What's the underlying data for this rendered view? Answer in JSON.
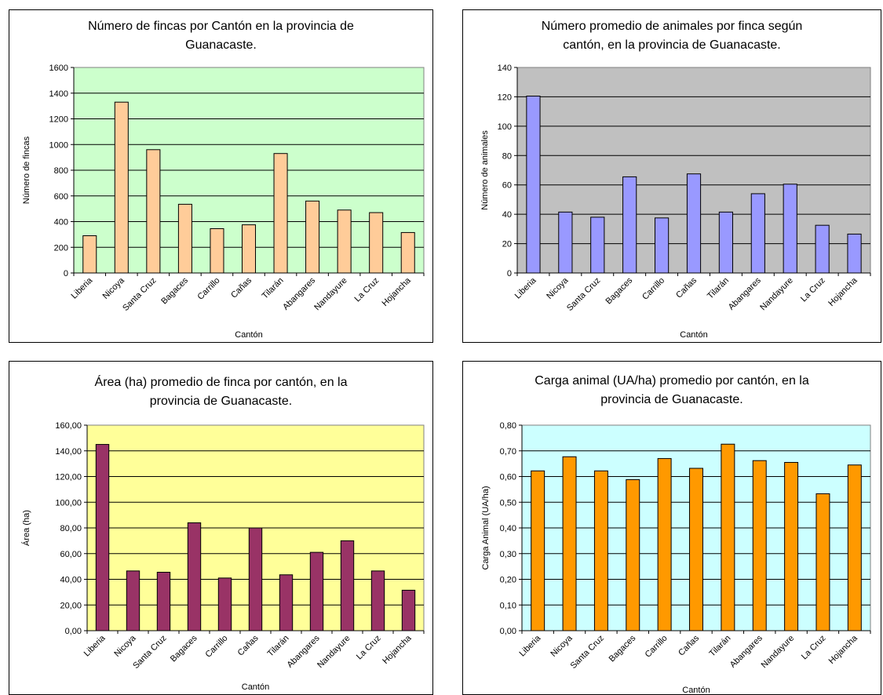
{
  "chart_data": [
    {
      "type": "bar",
      "title": [
        "Número de fincas por Cantón en la provincia de",
        "Guanacaste."
      ],
      "xlabel": "Cantón",
      "ylabel": "Número de fincas",
      "categories": [
        "Liberia",
        "Nicoya",
        "Santa Cruz",
        "Bagaces",
        "Carrillo",
        "Cañas",
        "Tilarán",
        "Abangares",
        "Nandayure",
        "La Cruz",
        "Hojancha"
      ],
      "values": [
        290,
        1330,
        960,
        535,
        345,
        375,
        930,
        560,
        490,
        470,
        315
      ],
      "ylim": [
        0,
        1600
      ],
      "yticks": [
        "0",
        "200",
        "400",
        "600",
        "800",
        "1000",
        "1200",
        "1400",
        "1600"
      ],
      "grid": true,
      "plot_bg": "#ccffcc",
      "bar_color": "#ffcc99"
    },
    {
      "type": "bar",
      "title": [
        "Número promedio de animales por finca según",
        "cantón, en la provincia de Guanacaste."
      ],
      "xlabel": "Cantón",
      "ylabel": "Número de animales",
      "categories": [
        "Liberia",
        "Nicoya",
        "Santa Cruz",
        "Bagaces",
        "Carrillo",
        "Cañas",
        "Tilarán",
        "Abangares",
        "Nandayure",
        "La Cruz",
        "Hojancha"
      ],
      "values": [
        120.5,
        41.5,
        38,
        65.5,
        37.5,
        67.5,
        41.5,
        54,
        60.5,
        32.5,
        26.5
      ],
      "ylim": [
        0,
        140
      ],
      "yticks": [
        "0",
        "20",
        "40",
        "60",
        "80",
        "100",
        "120",
        "140"
      ],
      "grid": true,
      "plot_bg": "#c0c0c0",
      "bar_color": "#9999ff"
    },
    {
      "type": "bar",
      "title": [
        "Área (ha) promedio de finca por cantón, en la",
        "provincia de Guanacaste."
      ],
      "xlabel": "Cantón",
      "ylabel": "Área (ha)",
      "categories": [
        "Liberia",
        "Nicoya",
        "Santa Cruz",
        "Bagaces",
        "Carrillo",
        "Cañas",
        "Tilarán",
        "Abangares",
        "Nandayure",
        "La Cruz",
        "Hojancha"
      ],
      "values": [
        145,
        46.5,
        45.5,
        84,
        41,
        80,
        43.5,
        61,
        70,
        46.5,
        31.5
      ],
      "ylim": [
        0,
        160
      ],
      "yticks": [
        "0,00",
        "20,00",
        "40,00",
        "60,00",
        "80,00",
        "100,00",
        "120,00",
        "140,00",
        "160,00"
      ],
      "grid": true,
      "plot_bg": "#ffff99",
      "bar_color": "#993366"
    },
    {
      "type": "bar",
      "title": [
        "Carga animal (UA/ha) promedio por cantón, en la",
        "provincia de Guanacaste."
      ],
      "xlabel": "Cantón",
      "ylabel": "Carga Animal (UA/ha)",
      "categories": [
        "Liberia",
        "Nicoya",
        "Santa Cruz",
        "Bagaces",
        "Carrillo",
        "Cañas",
        "Tilarán",
        "Abangares",
        "Nandayure",
        "La Cruz",
        "Hojancha"
      ],
      "values": [
        0.622,
        0.677,
        0.622,
        0.588,
        0.67,
        0.632,
        0.726,
        0.662,
        0.655,
        0.533,
        0.645
      ],
      "ylim": [
        0,
        0.8
      ],
      "yticks": [
        "0,00",
        "0,10",
        "0,20",
        "0,30",
        "0,40",
        "0,50",
        "0,60",
        "0,70",
        "0,80"
      ],
      "grid": true,
      "plot_bg": "#ccffff",
      "bar_color": "#ff9900"
    }
  ]
}
